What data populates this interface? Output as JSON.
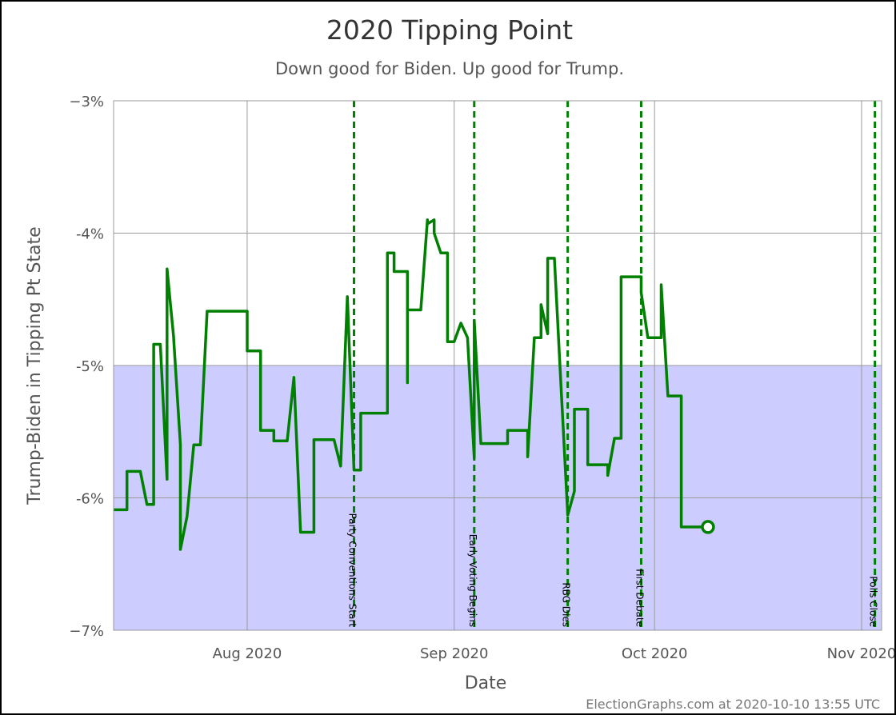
{
  "chart_data": {
    "type": "line",
    "title": "2020 Tipping Point",
    "subtitle": "Down good for Biden. Up good for Trump.",
    "xlabel": "Date",
    "ylabel": "Trump-Biden in Tipping Pt State",
    "credit": "ElectionGraphs.com at 2020-10-10 13:55 UTC",
    "xlim": [
      "2020-07-12",
      "2020-11-04"
    ],
    "ylim": [
      -7,
      -3
    ],
    "y_ticks": [
      {
        "value": -3,
        "label": "−3%"
      },
      {
        "value": -4,
        "label": "-4%"
      },
      {
        "value": -5,
        "label": "-5%"
      },
      {
        "value": -6,
        "label": "-6%"
      },
      {
        "value": -7,
        "label": "−7%"
      }
    ],
    "x_ticks": [
      {
        "date": "2020-08-01",
        "label": "Aug 2020"
      },
      {
        "date": "2020-09-01",
        "label": "Sep 2020"
      },
      {
        "date": "2020-10-01",
        "label": "Oct 2020"
      },
      {
        "date": "2020-11-01",
        "label": "Nov 2020"
      }
    ],
    "grid": true,
    "shaded_band": {
      "from": -7,
      "to": -5,
      "color": "#ccccff"
    },
    "line_color": "#008000",
    "event_color": "#008000",
    "events": [
      {
        "date": "2020-08-17",
        "label": "Party Conventions Start"
      },
      {
        "date": "2020-09-04",
        "label": "Early Voting Begins"
      },
      {
        "date": "2020-09-18",
        "label": "RBG Dies"
      },
      {
        "date": "2020-09-29",
        "label": "First Debate"
      },
      {
        "date": "2020-11-03",
        "label": "Polls Close"
      }
    ],
    "series": [
      {
        "values": [
          [
            "2020-07-12",
            -6.09
          ],
          [
            "2020-07-14",
            -6.09
          ],
          [
            "2020-07-14",
            -5.8
          ],
          [
            "2020-07-16",
            -5.8
          ],
          [
            "2020-07-17",
            -6.05
          ],
          [
            "2020-07-18",
            -6.05
          ],
          [
            "2020-07-18",
            -4.84
          ],
          [
            "2020-07-19",
            -4.84
          ],
          [
            "2020-07-20",
            -5.86
          ],
          [
            "2020-07-20",
            -4.27
          ],
          [
            "2020-07-21",
            -4.79
          ],
          [
            "2020-07-21",
            -4.8
          ],
          [
            "2020-07-22",
            -5.6
          ],
          [
            "2020-07-22",
            -6.39
          ],
          [
            "2020-07-23",
            -6.14
          ],
          [
            "2020-07-23",
            -6.14
          ],
          [
            "2020-07-24",
            -5.6
          ],
          [
            "2020-07-25",
            -5.6
          ],
          [
            "2020-07-26",
            -4.59
          ],
          [
            "2020-08-01",
            -4.59
          ],
          [
            "2020-08-01",
            -4.89
          ],
          [
            "2020-08-03",
            -4.89
          ],
          [
            "2020-08-03",
            -5.49
          ],
          [
            "2020-08-05",
            -5.49
          ],
          [
            "2020-08-05",
            -5.57
          ],
          [
            "2020-08-07",
            -5.57
          ],
          [
            "2020-08-08",
            -5.09
          ],
          [
            "2020-08-08",
            -5.09
          ],
          [
            "2020-08-09",
            -6.26
          ],
          [
            "2020-08-11",
            -6.26
          ],
          [
            "2020-08-11",
            -5.56
          ],
          [
            "2020-08-14",
            -5.56
          ],
          [
            "2020-08-15",
            -5.76
          ],
          [
            "2020-08-15",
            -5.76
          ],
          [
            "2020-08-16",
            -4.48
          ],
          [
            "2020-08-16",
            -4.48
          ],
          [
            "2020-08-17",
            -5.79
          ],
          [
            "2020-08-18",
            -5.79
          ],
          [
            "2020-08-18",
            -5.36
          ],
          [
            "2020-08-22",
            -5.36
          ],
          [
            "2020-08-22",
            -4.15
          ],
          [
            "2020-08-23",
            -4.15
          ],
          [
            "2020-08-23",
            -4.29
          ],
          [
            "2020-08-25",
            -4.29
          ],
          [
            "2020-08-25",
            -5.13
          ],
          [
            "2020-08-25",
            -4.58
          ],
          [
            "2020-08-27",
            -4.58
          ],
          [
            "2020-08-28",
            -3.9
          ],
          [
            "2020-08-28",
            -3.93
          ],
          [
            "2020-08-29",
            -3.9
          ],
          [
            "2020-08-29",
            -4.0
          ],
          [
            "2020-08-30",
            -4.15
          ],
          [
            "2020-08-31",
            -4.15
          ],
          [
            "2020-08-31",
            -4.82
          ],
          [
            "2020-09-01",
            -4.82
          ],
          [
            "2020-09-02",
            -4.68
          ],
          [
            "2020-09-02",
            -4.68
          ],
          [
            "2020-09-03",
            -4.79
          ],
          [
            "2020-09-03",
            -4.79
          ],
          [
            "2020-09-04",
            -5.7
          ],
          [
            "2020-09-04",
            -4.66
          ],
          [
            "2020-09-05",
            -5.59
          ],
          [
            "2020-09-09",
            -5.59
          ],
          [
            "2020-09-09",
            -5.49
          ],
          [
            "2020-09-12",
            -5.49
          ],
          [
            "2020-09-12",
            -5.69
          ],
          [
            "2020-09-13",
            -4.79
          ],
          [
            "2020-09-14",
            -4.79
          ],
          [
            "2020-09-14",
            -4.54
          ],
          [
            "2020-09-15",
            -4.76
          ],
          [
            "2020-09-15",
            -4.19
          ],
          [
            "2020-09-16",
            -4.19
          ],
          [
            "2020-09-17",
            -5.16
          ],
          [
            "2020-09-17",
            -5.16
          ],
          [
            "2020-09-18",
            -6.13
          ],
          [
            "2020-09-19",
            -5.95
          ],
          [
            "2020-09-19",
            -5.33
          ],
          [
            "2020-09-21",
            -5.33
          ],
          [
            "2020-09-21",
            -5.75
          ],
          [
            "2020-09-24",
            -5.75
          ],
          [
            "2020-09-24",
            -5.83
          ],
          [
            "2020-09-25",
            -5.55
          ],
          [
            "2020-09-26",
            -5.55
          ],
          [
            "2020-09-26",
            -4.33
          ],
          [
            "2020-09-29",
            -4.33
          ],
          [
            "2020-09-29",
            -4.45
          ],
          [
            "2020-09-30",
            -4.79
          ],
          [
            "2020-10-02",
            -4.79
          ],
          [
            "2020-10-02",
            -4.39
          ],
          [
            "2020-10-03",
            -5.23
          ],
          [
            "2020-10-05",
            -5.23
          ],
          [
            "2020-10-05",
            -6.22
          ],
          [
            "2020-10-09",
            -6.22
          ]
        ],
        "current": [
          "2020-10-09",
          -6.22
        ]
      }
    ]
  }
}
